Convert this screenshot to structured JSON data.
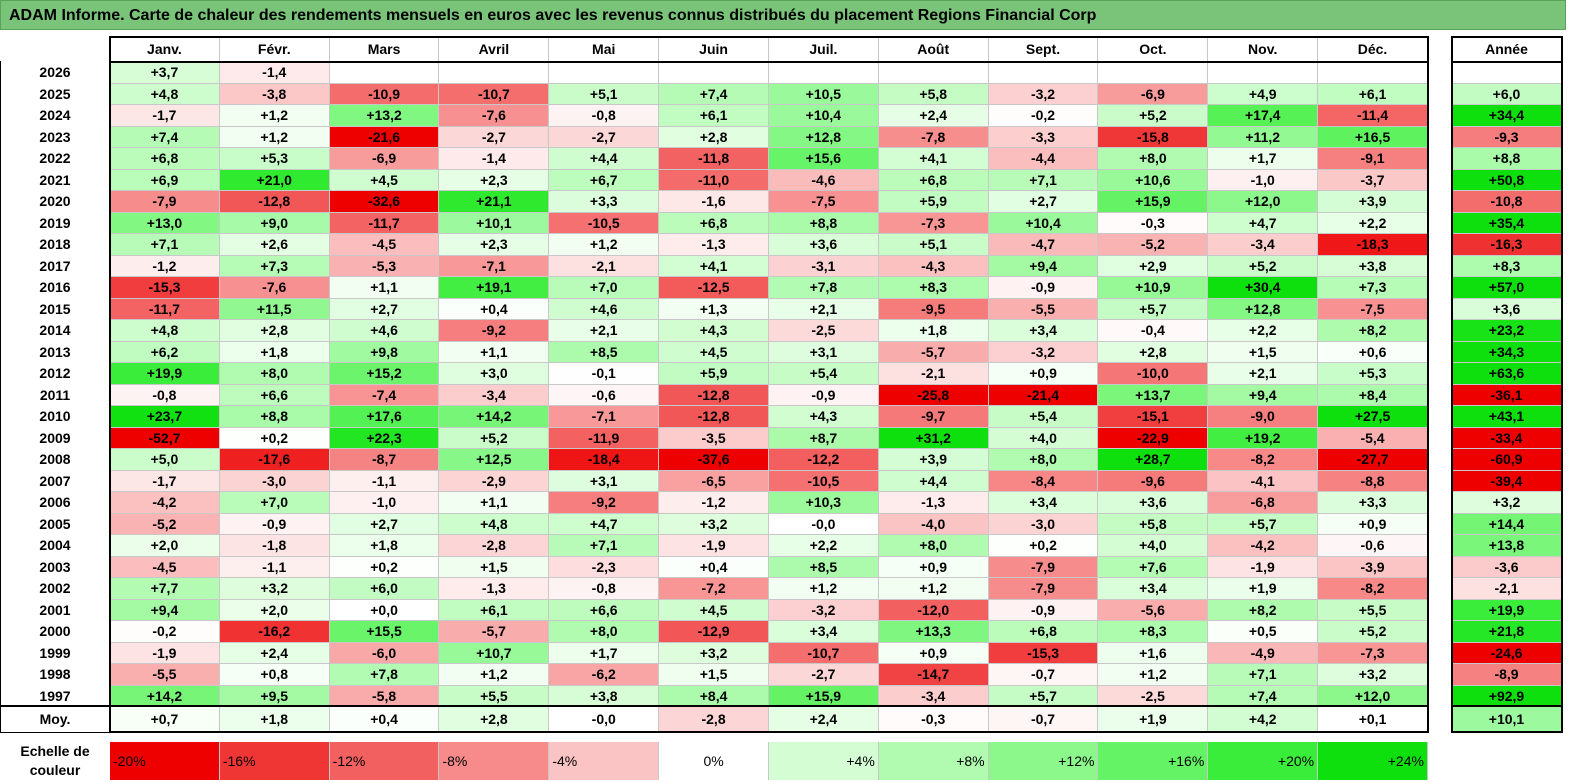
{
  "title": "ADAM Informe. Carte de chaleur des rendements mensuels en euros avec les revenus connus distribués du placement Regions Financial Corp",
  "chart_data": {
    "type": "heatmap",
    "months": [
      "Janv.",
      "Févr.",
      "Mars",
      "Avril",
      "Mai",
      "Juin",
      "Juil.",
      "Août",
      "Sept.",
      "Oct.",
      "Nov.",
      "Déc."
    ],
    "year_header": "Année",
    "rows": [
      {
        "year": "2026",
        "values": [
          "+3,7",
          "-1,4",
          "",
          "",
          "",
          "",
          "",
          "",
          "",
          "",
          "",
          ""
        ],
        "annual": ""
      },
      {
        "year": "2025",
        "values": [
          "+4,8",
          "-3,8",
          "-10,9",
          "-10,7",
          "+5,1",
          "+7,4",
          "+10,5",
          "+5,8",
          "-3,2",
          "-6,9",
          "+4,9",
          "+6,1"
        ],
        "annual": "+6,0"
      },
      {
        "year": "2024",
        "values": [
          "-1,7",
          "+1,2",
          "+13,2",
          "-7,6",
          "-0,8",
          "+6,1",
          "+10,4",
          "+2,4",
          "-0,2",
          "+5,2",
          "+17,4",
          "-11,4"
        ],
        "annual": "+34,4"
      },
      {
        "year": "2023",
        "values": [
          "+7,4",
          "+1,2",
          "-21,6",
          "-2,7",
          "-2,7",
          "+2,8",
          "+12,8",
          "-7,8",
          "-3,3",
          "-15,8",
          "+11,2",
          "+16,5"
        ],
        "annual": "-9,3"
      },
      {
        "year": "2022",
        "values": [
          "+6,8",
          "+5,3",
          "-6,9",
          "-1,4",
          "+4,4",
          "-11,8",
          "+15,6",
          "+4,1",
          "-4,4",
          "+8,0",
          "+1,7",
          "-9,1"
        ],
        "annual": "+8,8"
      },
      {
        "year": "2021",
        "values": [
          "+6,9",
          "+21,0",
          "+4,5",
          "+2,3",
          "+6,7",
          "-11,0",
          "-4,6",
          "+6,8",
          "+7,1",
          "+10,6",
          "-1,0",
          "-3,7"
        ],
        "annual": "+50,8"
      },
      {
        "year": "2020",
        "values": [
          "-7,9",
          "-12,8",
          "-32,6",
          "+21,1",
          "+3,3",
          "-1,6",
          "-7,5",
          "+5,9",
          "+2,7",
          "+15,9",
          "+12,0",
          "+3,9"
        ],
        "annual": "-10,8"
      },
      {
        "year": "2019",
        "values": [
          "+13,0",
          "+9,0",
          "-11,7",
          "+10,1",
          "-10,5",
          "+6,8",
          "+8,8",
          "-7,3",
          "+10,4",
          "-0,3",
          "+4,7",
          "+2,2"
        ],
        "annual": "+35,4"
      },
      {
        "year": "2018",
        "values": [
          "+7,1",
          "+2,6",
          "-4,5",
          "+2,3",
          "+1,2",
          "-1,3",
          "+3,6",
          "+5,1",
          "-4,7",
          "-5,2",
          "-3,4",
          "-18,3"
        ],
        "annual": "-16,3"
      },
      {
        "year": "2017",
        "values": [
          "-1,2",
          "+7,3",
          "-5,3",
          "-7,1",
          "-2,1",
          "+4,1",
          "-3,1",
          "-4,3",
          "+9,4",
          "+2,9",
          "+5,2",
          "+3,8"
        ],
        "annual": "+8,3"
      },
      {
        "year": "2016",
        "values": [
          "-15,3",
          "-7,6",
          "+1,1",
          "+19,1",
          "+7,0",
          "-12,5",
          "+7,8",
          "+8,3",
          "-0,9",
          "+10,9",
          "+30,4",
          "+7,3"
        ],
        "annual": "+57,0"
      },
      {
        "year": "2015",
        "values": [
          "-11,7",
          "+11,5",
          "+2,7",
          "+0,4",
          "+4,6",
          "+1,3",
          "+2,1",
          "-9,5",
          "-5,5",
          "+5,7",
          "+12,8",
          "-7,5"
        ],
        "annual": "+3,6"
      },
      {
        "year": "2014",
        "values": [
          "+4,8",
          "+2,8",
          "+4,6",
          "-9,2",
          "+2,1",
          "+4,3",
          "-2,5",
          "+1,8",
          "+3,4",
          "-0,4",
          "+2,2",
          "+8,2"
        ],
        "annual": "+23,2"
      },
      {
        "year": "2013",
        "values": [
          "+6,2",
          "+1,8",
          "+9,8",
          "+1,1",
          "+8,5",
          "+4,5",
          "+3,1",
          "-5,7",
          "-3,2",
          "+2,8",
          "+1,5",
          "+0,6"
        ],
        "annual": "+34,3"
      },
      {
        "year": "2012",
        "values": [
          "+19,9",
          "+8,0",
          "+15,2",
          "+3,0",
          "-0,1",
          "+5,9",
          "+5,4",
          "-2,1",
          "+0,9",
          "-10,0",
          "+2,1",
          "+5,3"
        ],
        "annual": "+63,6"
      },
      {
        "year": "2011",
        "values": [
          "-0,8",
          "+6,6",
          "-7,4",
          "-3,4",
          "-0,6",
          "-12,8",
          "-0,9",
          "-25,8",
          "-21,4",
          "+13,7",
          "+9,4",
          "+8,4"
        ],
        "annual": "-36,1"
      },
      {
        "year": "2010",
        "values": [
          "+23,7",
          "+8,8",
          "+17,6",
          "+14,2",
          "-7,1",
          "-12,8",
          "+4,3",
          "-9,7",
          "+5,4",
          "-15,1",
          "-9,0",
          "+27,5"
        ],
        "annual": "+43,1"
      },
      {
        "year": "2009",
        "values": [
          "-52,7",
          "+0,2",
          "+22,3",
          "+5,2",
          "-11,9",
          "-3,5",
          "+8,7",
          "+31,2",
          "+4,0",
          "-22,9",
          "+19,2",
          "-5,4"
        ],
        "annual": "-33,4"
      },
      {
        "year": "2008",
        "values": [
          "+5,0",
          "-17,6",
          "-8,7",
          "+12,5",
          "-18,4",
          "-37,6",
          "-12,2",
          "+3,9",
          "+8,0",
          "+28,7",
          "-8,2",
          "-27,7"
        ],
        "annual": "-60,9"
      },
      {
        "year": "2007",
        "values": [
          "-1,7",
          "-3,0",
          "-1,1",
          "-2,9",
          "+3,1",
          "-6,5",
          "-10,5",
          "+4,4",
          "-8,4",
          "-9,6",
          "-4,1",
          "-8,8"
        ],
        "annual": "-39,4"
      },
      {
        "year": "2006",
        "values": [
          "-4,2",
          "+7,0",
          "-1,0",
          "+1,1",
          "-9,2",
          "-1,2",
          "+10,3",
          "-1,3",
          "+3,4",
          "+3,6",
          "-6,8",
          "+3,3"
        ],
        "annual": "+3,2"
      },
      {
        "year": "2005",
        "values": [
          "-5,2",
          "-0,9",
          "+2,7",
          "+4,8",
          "+4,7",
          "+3,2",
          "-0,0",
          "-4,0",
          "-3,0",
          "+5,8",
          "+5,7",
          "+0,9"
        ],
        "annual": "+14,4"
      },
      {
        "year": "2004",
        "values": [
          "+2,0",
          "-1,8",
          "+1,8",
          "-2,8",
          "+7,1",
          "-1,9",
          "+2,2",
          "+8,0",
          "+0,2",
          "+4,0",
          "-4,2",
          "-0,6"
        ],
        "annual": "+13,8"
      },
      {
        "year": "2003",
        "values": [
          "-4,5",
          "-1,1",
          "+0,2",
          "+1,5",
          "-2,3",
          "+0,4",
          "+8,5",
          "+0,9",
          "-7,9",
          "+7,6",
          "-1,9",
          "-3,9"
        ],
        "annual": "-3,6"
      },
      {
        "year": "2002",
        "values": [
          "+7,7",
          "+3,2",
          "+6,0",
          "-1,3",
          "-0,8",
          "-7,2",
          "+1,2",
          "+1,2",
          "-7,9",
          "+3,4",
          "+1,9",
          "-8,2"
        ],
        "annual": "-2,1"
      },
      {
        "year": "2001",
        "values": [
          "+9,4",
          "+2,0",
          "+0,0",
          "+6,1",
          "+6,6",
          "+4,5",
          "-3,2",
          "-12,0",
          "-0,9",
          "-5,6",
          "+8,2",
          "+5,5"
        ],
        "annual": "+19,9"
      },
      {
        "year": "2000",
        "values": [
          "-0,2",
          "-16,2",
          "+15,5",
          "-5,7",
          "+8,0",
          "-12,9",
          "+3,4",
          "+13,3",
          "+6,8",
          "+8,3",
          "+0,5",
          "+5,2"
        ],
        "annual": "+21,8"
      },
      {
        "year": "1999",
        "values": [
          "-1,9",
          "+2,4",
          "-6,0",
          "+10,7",
          "+1,7",
          "+3,2",
          "-10,7",
          "+0,9",
          "-15,3",
          "+1,6",
          "-4,9",
          "-7,3"
        ],
        "annual": "-24,6"
      },
      {
        "year": "1998",
        "values": [
          "-5,5",
          "+0,8",
          "+7,8",
          "+1,2",
          "-6,2",
          "+1,5",
          "-2,7",
          "-14,7",
          "-0,7",
          "+1,2",
          "+7,1",
          "+3,2"
        ],
        "annual": "-8,9"
      },
      {
        "year": "1997",
        "values": [
          "+14,2",
          "+9,5",
          "-5,8",
          "+5,5",
          "+3,8",
          "+8,4",
          "+15,9",
          "-3,4",
          "+5,7",
          "-2,5",
          "+7,4",
          "+12,0"
        ],
        "annual": "+92,9"
      }
    ],
    "average": {
      "label": "Moy.",
      "values": [
        "+0,7",
        "+1,8",
        "+0,4",
        "+2,8",
        "-0,0",
        "-2,8",
        "+2,4",
        "-0,3",
        "-0,7",
        "+1,9",
        "+4,2",
        "+0,1"
      ],
      "annual": "+10,1"
    },
    "scale": {
      "label": "Echelle de couleur",
      "steps": [
        {
          "label": "-20%",
          "value": -20,
          "color": "#ee0000"
        },
        {
          "label": "-16%",
          "value": -16,
          "color": "#f03535"
        },
        {
          "label": "-12%",
          "value": -12,
          "color": "#f36060"
        },
        {
          "label": "-8%",
          "value": -8,
          "color": "#f78b8b"
        },
        {
          "label": "-4%",
          "value": -4,
          "color": "#fbc4c4"
        },
        {
          "label": "0%",
          "value": 0,
          "color": "#ffffff"
        },
        {
          "label": "+4%",
          "value": 4,
          "color": "#d4fdd4"
        },
        {
          "label": "+8%",
          "value": 8,
          "color": "#b0fbb0"
        },
        {
          "label": "+12%",
          "value": 12,
          "color": "#8cf88c"
        },
        {
          "label": "+16%",
          "value": 16,
          "color": "#64f364"
        },
        {
          "label": "+20%",
          "value": 20,
          "color": "#3aed3a"
        },
        {
          "label": "+24%",
          "value": 24,
          "color": "#0ee00e"
        }
      ]
    }
  }
}
